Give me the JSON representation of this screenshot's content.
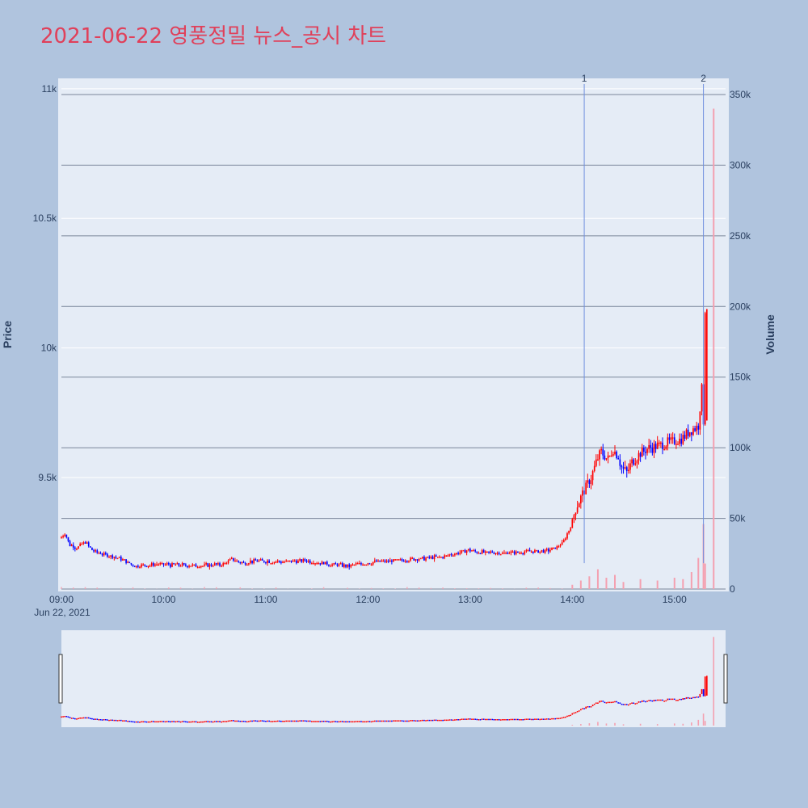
{
  "chart_data": {
    "type": "candlestick",
    "title": "2021-06-22 영풍정밀 뉴스_공시 차트",
    "ylabel": "Price",
    "y2label": "Volume",
    "price_ticks": [
      "9.5k",
      "10k",
      "10.5k",
      "11k"
    ],
    "price_tick_values": [
      9500,
      10000,
      10500,
      11000
    ],
    "volume_ticks": [
      "0",
      "50k",
      "100k",
      "150k",
      "200k",
      "250k",
      "300k",
      "350k"
    ],
    "volume_tick_values": [
      0,
      50000,
      100000,
      150000,
      200000,
      250000,
      300000,
      350000
    ],
    "x_ticks": [
      "09:00",
      "10:00",
      "11:00",
      "12:00",
      "13:00",
      "14:00",
      "15:00"
    ],
    "x_date_label": "Jun 22, 2021",
    "x_range": [
      "09:00",
      "15:30"
    ],
    "price_range": [
      9070,
      11040
    ],
    "volume_range": [
      0,
      350000
    ],
    "up_color": "#ff0000",
    "down_color": "#0000ff",
    "volume_color": "#f4a0b0",
    "marker_color": "#6f8fdf",
    "markers": [
      {
        "label": "1",
        "time": "14:07"
      },
      {
        "label": "2",
        "time": "15:17"
      }
    ],
    "price_path": [
      [
        "09:00",
        9265
      ],
      [
        "09:03",
        9285
      ],
      [
        "09:06",
        9240
      ],
      [
        "09:10",
        9230
      ],
      [
        "09:15",
        9250
      ],
      [
        "09:20",
        9215
      ],
      [
        "09:28",
        9200
      ],
      [
        "09:35",
        9190
      ],
      [
        "09:40",
        9170
      ],
      [
        "09:45",
        9160
      ],
      [
        "10:00",
        9165
      ],
      [
        "10:20",
        9160
      ],
      [
        "10:35",
        9165
      ],
      [
        "10:42",
        9185
      ],
      [
        "10:48",
        9170
      ],
      [
        "10:55",
        9180
      ],
      [
        "11:10",
        9175
      ],
      [
        "11:25",
        9180
      ],
      [
        "11:40",
        9165
      ],
      [
        "11:50",
        9160
      ],
      [
        "12:00",
        9170
      ],
      [
        "12:15",
        9180
      ],
      [
        "12:30",
        9185
      ],
      [
        "12:45",
        9195
      ],
      [
        "12:50",
        9205
      ],
      [
        "13:00",
        9220
      ],
      [
        "13:10",
        9210
      ],
      [
        "13:20",
        9210
      ],
      [
        "13:35",
        9215
      ],
      [
        "13:45",
        9215
      ],
      [
        "13:50",
        9225
      ],
      [
        "13:55",
        9245
      ],
      [
        "14:00",
        9310
      ],
      [
        "14:03",
        9380
      ],
      [
        "14:08",
        9450
      ],
      [
        "14:12",
        9500
      ],
      [
        "14:15",
        9560
      ],
      [
        "14:18",
        9600
      ],
      [
        "14:22",
        9570
      ],
      [
        "14:25",
        9610
      ],
      [
        "14:28",
        9580
      ],
      [
        "14:30",
        9540
      ],
      [
        "14:33",
        9520
      ],
      [
        "14:36",
        9560
      ],
      [
        "14:40",
        9590
      ],
      [
        "14:45",
        9610
      ],
      [
        "14:50",
        9620
      ],
      [
        "14:55",
        9630
      ],
      [
        "15:00",
        9640
      ],
      [
        "15:05",
        9650
      ],
      [
        "15:10",
        9680
      ],
      [
        "15:15",
        9700
      ],
      [
        "15:17",
        9840
      ],
      [
        "15:18",
        9720
      ],
      [
        "15:19",
        10150
      ]
    ],
    "volume_bars": [
      [
        "14:00",
        3000
      ],
      [
        "14:05",
        6000
      ],
      [
        "14:10",
        9000
      ],
      [
        "14:15",
        14000
      ],
      [
        "14:20",
        8000
      ],
      [
        "14:25",
        10000
      ],
      [
        "14:30",
        5000
      ],
      [
        "14:40",
        7000
      ],
      [
        "14:50",
        6000
      ],
      [
        "15:00",
        8000
      ],
      [
        "15:05",
        7000
      ],
      [
        "15:10",
        12000
      ],
      [
        "15:14",
        22000
      ],
      [
        "15:17",
        46000
      ],
      [
        "15:18",
        18000
      ],
      [
        "15:23",
        340000
      ]
    ]
  }
}
